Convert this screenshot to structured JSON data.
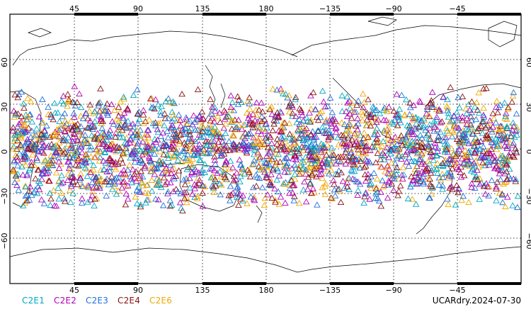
{
  "map": {
    "top_ticks": [
      "45",
      "90",
      "135",
      "180",
      "−135",
      "−90",
      "−45"
    ],
    "bottom_ticks": [
      "45",
      "90",
      "135",
      "180",
      "−135",
      "−90",
      "−45"
    ],
    "lat_ticks": [
      "60",
      "30",
      "0",
      "−30",
      "−60"
    ],
    "gridlines": "dotted",
    "frame_color": "#000000"
  },
  "legend": [
    {
      "label": "C2E1",
      "color": "#00a8c0"
    },
    {
      "label": "C2E2",
      "color": "#b000b8"
    },
    {
      "label": "C2E3",
      "color": "#1f6fd8"
    },
    {
      "label": "C2E4",
      "color": "#8a1010"
    },
    {
      "label": "C2E6",
      "color": "#f0a800"
    }
  ],
  "product_label": "UCARdry.2024-07-30",
  "marker_shape": "open-triangle"
}
